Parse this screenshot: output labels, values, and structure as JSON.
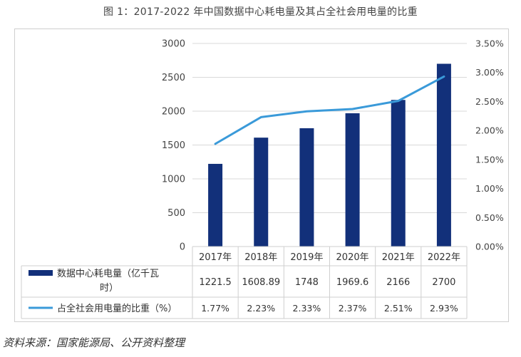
{
  "title": "图 1：2017-2022 年中国数据中心耗电量及其占全社会用电量的比重",
  "source": "资料来源：国家能源局、公开资料整理",
  "chart_data": {
    "type": "bar",
    "categories": [
      "2017年",
      "2018年",
      "2019年",
      "2020年",
      "2021年",
      "2022年"
    ],
    "series": [
      {
        "name": "数据中心耗电量（亿千瓦时）",
        "type": "bar",
        "axis": "left",
        "values": [
          1221.5,
          1608.89,
          1748,
          1969.6,
          2166,
          2700
        ],
        "labels": [
          "1221.5",
          "1608.89",
          "1748",
          "1969.6",
          "2166",
          "2700"
        ],
        "color": "#12307a"
      },
      {
        "name": "占全社会用电量的比重（%）",
        "type": "line",
        "axis": "right",
        "values": [
          1.77,
          2.23,
          2.33,
          2.37,
          2.51,
          2.93
        ],
        "labels": [
          "1.77%",
          "2.23%",
          "2.33%",
          "2.37%",
          "2.51%",
          "2.93%"
        ],
        "color": "#3a9ad9"
      }
    ],
    "y_left": {
      "ylim": [
        0,
        3000
      ],
      "ticks": [
        0,
        500,
        1000,
        1500,
        2000,
        2500,
        3000
      ],
      "tick_labels": [
        "0",
        "500",
        "1000",
        "1500",
        "2000",
        "2500",
        "3000"
      ]
    },
    "y_right": {
      "ylim": [
        0,
        3.5
      ],
      "ticks": [
        0,
        0.5,
        1.0,
        1.5,
        2.0,
        2.5,
        3.0,
        3.5
      ],
      "tick_labels": [
        "0.00%",
        "0.50%",
        "1.00%",
        "1.50%",
        "2.00%",
        "2.50%",
        "3.00%",
        "3.50%"
      ]
    },
    "grid": true,
    "legend": "data-table-below"
  }
}
